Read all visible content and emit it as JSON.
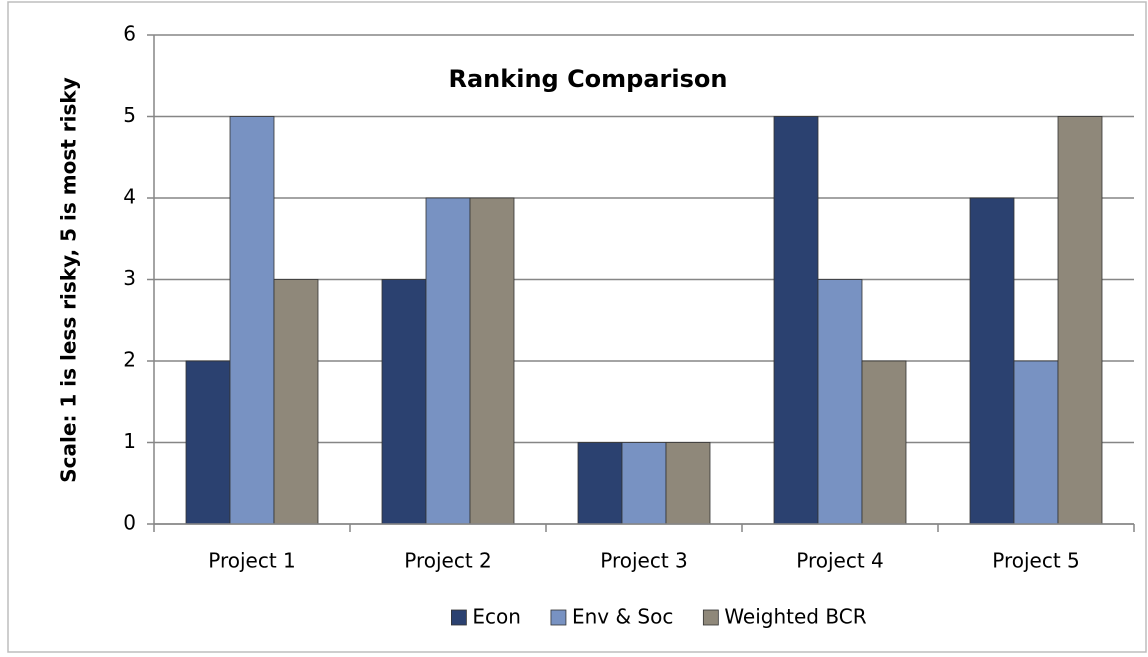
{
  "chart_data": {
    "type": "bar",
    "title": "Ranking Comparison",
    "y_label": "Scale: 1 is less risky, 5 is most risky",
    "categories": [
      "Project 1",
      "Project 2",
      "Project 3",
      "Project 4",
      "Project 5"
    ],
    "series": [
      {
        "name": "Econ",
        "color": "#2b4170",
        "values": [
          2,
          3,
          1,
          5,
          4
        ]
      },
      {
        "name": "Env & Soc",
        "color": "#7892c2",
        "values": [
          5,
          4,
          1,
          3,
          2
        ]
      },
      {
        "name": "Weighted BCR",
        "color": "#8f887a",
        "values": [
          3,
          4,
          1,
          2,
          5
        ]
      }
    ],
    "ylim": [
      0,
      6
    ],
    "yticks": [
      0,
      1,
      2,
      3,
      4,
      5,
      6
    ],
    "grid": true,
    "legend": "bottom"
  }
}
